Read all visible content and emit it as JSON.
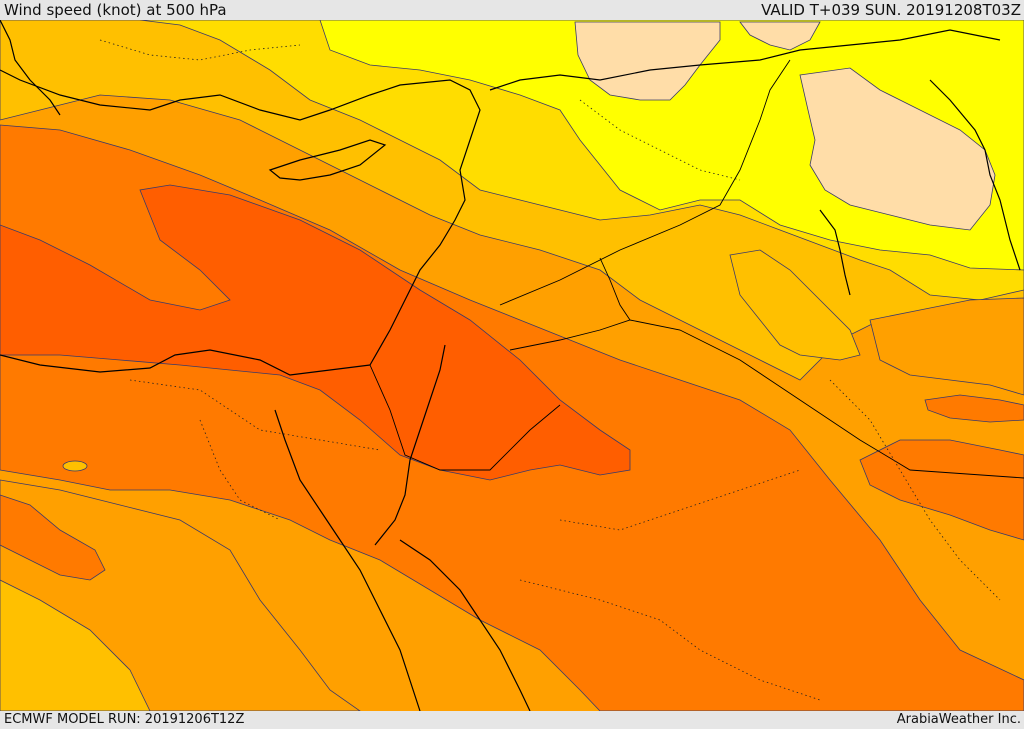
{
  "header": {
    "title": "Wind speed (knot) at 500 hPa",
    "valid": "VALID T+039 SUN. 20191208T03Z"
  },
  "footer": {
    "model_run": "ECMWF MODEL RUN: 20191206T12Z",
    "credit": "ArabiaWeather Inc."
  },
  "colors": {
    "band_20_30": "#ffff00",
    "band_30_40": "#ffdd00",
    "band_40_50": "#ffc000",
    "band_50_60": "#ffa000",
    "band_60_70": "#ff7a00",
    "band_70_80": "#ff5e00",
    "calm_pockets": "#ffdda8",
    "coastline": "#000000",
    "contour": "#3a3a6a"
  }
}
